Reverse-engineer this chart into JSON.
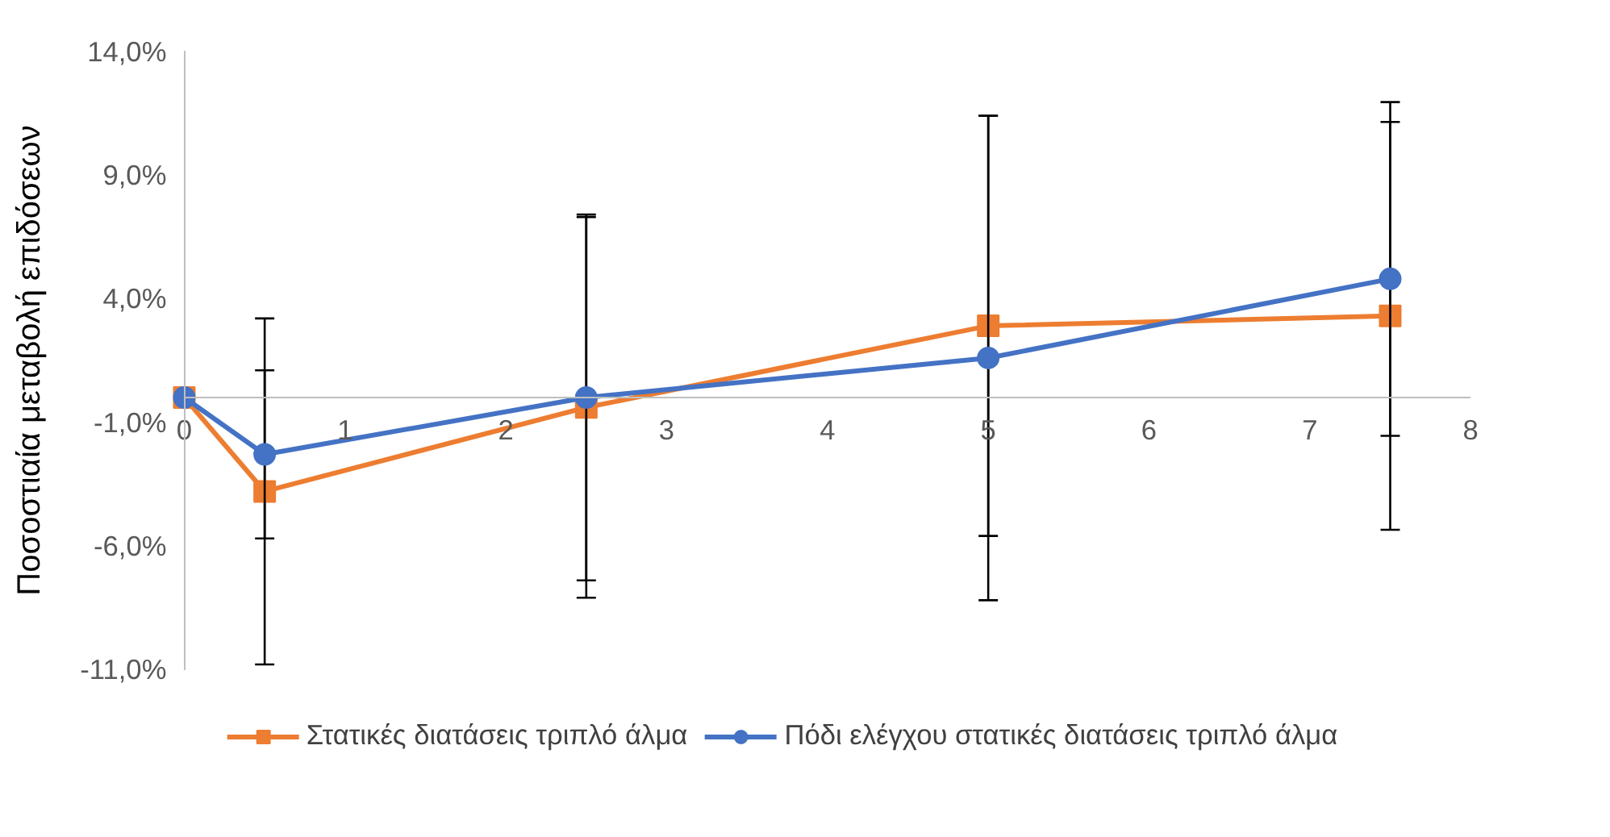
{
  "chart_data": {
    "type": "line",
    "ylabel": "Ποσοστιαία μεταβολή επιδόσεων",
    "x": [
      0,
      0.5,
      2.5,
      5,
      7.5
    ],
    "series": [
      {
        "name": "Στατικές διατάσεις τριπλό άλμα",
        "color": "#ed7d31",
        "marker": "square",
        "values": [
          0,
          -3.8,
          -0.4,
          2.9,
          3.3
        ],
        "errors": [
          null,
          7.0,
          7.7,
          8.5,
          8.65
        ]
      },
      {
        "name": "Πόδι ελέγχου στατικές διατάσεις τριπλό άλμα",
        "color": "#4472c4",
        "marker": "circle",
        "values": [
          0,
          -2.3,
          0.0,
          1.6,
          4.8
        ],
        "errors": [
          null,
          3.4,
          7.4,
          9.8,
          6.35
        ]
      }
    ],
    "xlim": [
      0,
      8
    ],
    "xticks": [
      0,
      1,
      2,
      3,
      4,
      5,
      6,
      7,
      8
    ],
    "ylim": [
      -11,
      14
    ],
    "yticks": [
      {
        "value": -11,
        "label": "-11,0%"
      },
      {
        "value": -6,
        "label": "-6,0%"
      },
      {
        "value": -1,
        "label": "-1,0%"
      },
      {
        "value": 4,
        "label": "4,0%"
      },
      {
        "value": 9,
        "label": "9,0%"
      },
      {
        "value": 14,
        "label": "14,0%"
      }
    ],
    "grid": false,
    "legend": "bottom",
    "line_style": "solid"
  }
}
